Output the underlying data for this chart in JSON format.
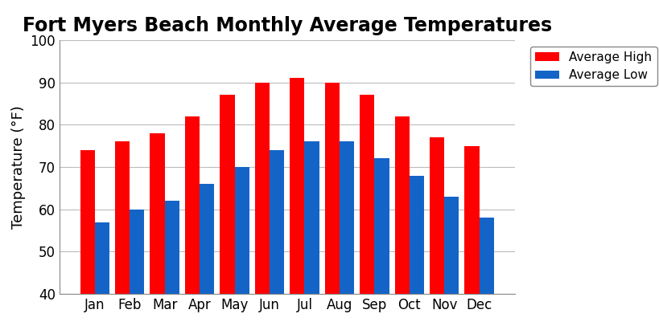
{
  "title": "Fort Myers Beach Monthly Average Temperatures",
  "months": [
    "Jan",
    "Feb",
    "Mar",
    "Apr",
    "May",
    "Jun",
    "Jul",
    "Aug",
    "Sep",
    "Oct",
    "Nov",
    "Dec"
  ],
  "avg_high": [
    74,
    76,
    78,
    82,
    87,
    90,
    91,
    90,
    87,
    82,
    77,
    75
  ],
  "avg_low": [
    57,
    60,
    62,
    66,
    70,
    74,
    76,
    76,
    72,
    68,
    63,
    58
  ],
  "high_color": "#ff0000",
  "low_color": "#1464c8",
  "ylabel": "Temperature (°F)",
  "ylim": [
    40,
    100
  ],
  "yticks": [
    40,
    50,
    60,
    70,
    80,
    90,
    100
  ],
  "legend_labels": [
    "Average High",
    "Average Low"
  ],
  "title_fontsize": 17,
  "label_fontsize": 13,
  "tick_fontsize": 12,
  "legend_fontsize": 11,
  "background_color": "#ffffff",
  "grid_color": "#bbbbbb",
  "bar_width": 0.42
}
